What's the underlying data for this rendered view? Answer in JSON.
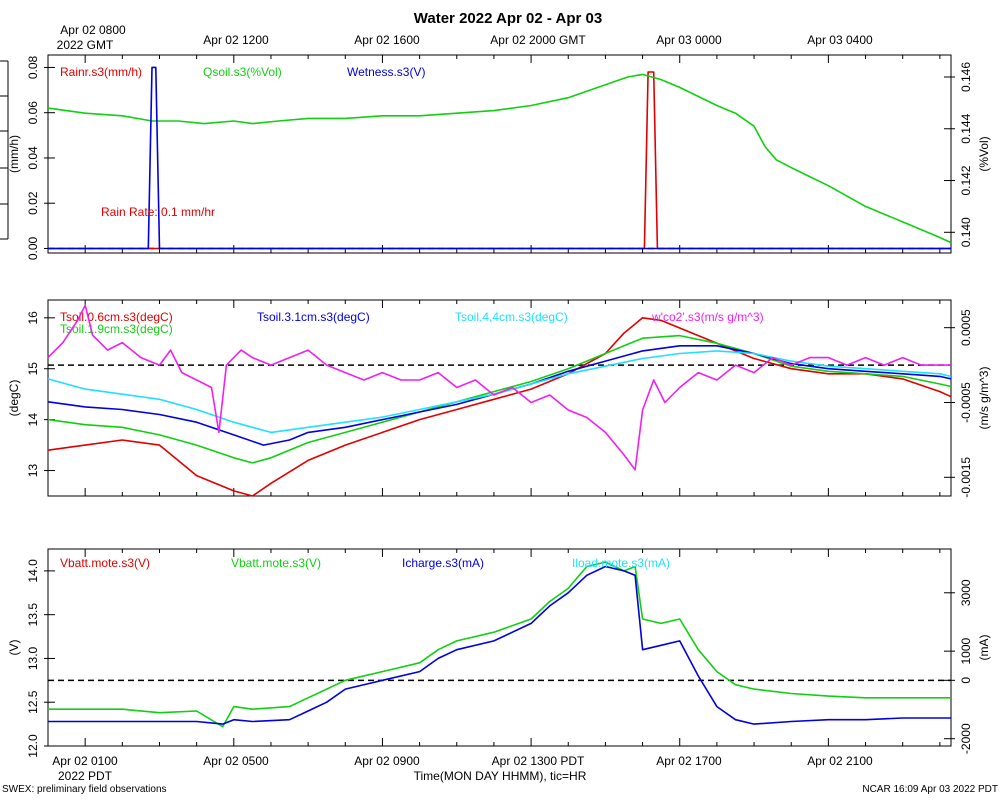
{
  "title": "Water 2022 Apr 02 - Apr 03",
  "top_time_axis": {
    "labels": [
      "Apr 02 0800",
      "Apr 02 1200",
      "Apr 02 1600",
      "Apr 02 2000 GMT",
      "Apr 03 0000",
      "Apr 03 0400"
    ],
    "year_label": "2022 GMT"
  },
  "bottom_time_axis": {
    "labels": [
      "Apr 02 0100",
      "Apr 02 0500",
      "Apr 02 0900",
      "Apr 02 1300 PDT",
      "Apr 02 1700",
      "Apr 02 2100"
    ],
    "year_label": "2022 PDT",
    "xlabel": "Time(MON DAY HHMM), tic=HR"
  },
  "footer": {
    "left": "SWEX: preliminary field observations",
    "right": "NCAR 16:09 Apr 03 2022 PDT"
  },
  "colors": {
    "red": "#e00000",
    "green": "#10d010",
    "blue": "#0000e0",
    "cyan": "#20e0ff",
    "magenta": "#f020f0",
    "black": "#000000"
  },
  "chart_data": [
    {
      "type": "line",
      "panel": "rain-soil",
      "x_unit": "hours since Apr 02 0000 PDT",
      "xlim": [
        0,
        24.3
      ],
      "ylabel_left": "(mm/h)",
      "ylabel_right": "(%Vol)",
      "ylim_left": [
        -0.002,
        0.0855
      ],
      "yticks_left": [
        "0.00",
        "0.02",
        "0.04",
        "0.06",
        "0.08"
      ],
      "ylim_right": [
        0.1392,
        0.14685
      ],
      "yticks_right": [
        "0.140",
        "0.142",
        "0.144",
        "0.146"
      ],
      "annotation": "Rain Rate: 0.1 mm/hr",
      "series": [
        {
          "name": "Rainr.s3(mm/h)",
          "color": "red",
          "axis": "left",
          "x": [
            0,
            16.05,
            16.15,
            16.3,
            16.4,
            24.3
          ],
          "y": [
            0,
            0,
            0.078,
            0.078,
            0,
            0
          ]
        },
        {
          "name": "Qsoil.s3(%Vol)",
          "color": "green",
          "axis": "right",
          "x": [
            0,
            1,
            2,
            2.8,
            3.5,
            4.2,
            5,
            5.5,
            6.2,
            7,
            8,
            9,
            10,
            11,
            12,
            13,
            14,
            15,
            15.6,
            16,
            16.5,
            17,
            18,
            18.5,
            19,
            19.3,
            19.6,
            20,
            21,
            22,
            23,
            24,
            24.3
          ],
          "y": [
            0.1448,
            0.1446,
            0.1445,
            0.1443,
            0.1443,
            0.1442,
            0.1443,
            0.1442,
            0.1443,
            0.1444,
            0.1444,
            0.1445,
            0.1445,
            0.1446,
            0.1447,
            0.1449,
            0.1452,
            0.1457,
            0.146,
            0.1461,
            0.1459,
            0.1456,
            0.1449,
            0.1446,
            0.1441,
            0.1433,
            0.1428,
            0.1425,
            0.1418,
            0.141,
            0.1404,
            0.1398,
            0.1396
          ]
        },
        {
          "name": "Wetness.s3(V)",
          "color": "blue",
          "axis": "left",
          "x": [
            0,
            2.7,
            2.8,
            2.9,
            3.0,
            24.3
          ],
          "y": [
            0,
            0,
            0.08,
            0.08,
            0,
            0
          ]
        }
      ],
      "reference_line": {
        "axis": "left",
        "value": 0
      }
    },
    {
      "type": "line",
      "panel": "soil-temperature",
      "x_unit": "hours since Apr 02 0000 PDT",
      "xlim": [
        0,
        24.3
      ],
      "ylabel_left": "(degC)",
      "ylabel_right": "(m/s g/m^3)",
      "ylim_left": [
        12.5,
        16.35
      ],
      "yticks_left": [
        "13",
        "14",
        "15",
        "16"
      ],
      "ylim_right": [
        -0.00175,
        0.00087
      ],
      "yticks_right": [
        "-0.0015",
        "-0.0005",
        "0.0005"
      ],
      "series": [
        {
          "name": "Tsoil.0.6cm.s3(degC)",
          "color": "red",
          "axis": "left",
          "x": [
            0,
            1,
            2,
            3,
            3.5,
            4,
            4.5,
            5,
            5.5,
            6,
            7,
            8,
            9,
            10,
            11,
            12,
            13,
            14,
            15,
            15.5,
            16,
            16.5,
            17,
            18,
            19,
            20,
            21,
            22,
            23,
            24,
            24.3
          ],
          "y": [
            13.4,
            13.5,
            13.6,
            13.5,
            13.2,
            12.9,
            12.75,
            12.6,
            12.5,
            12.75,
            13.2,
            13.5,
            13.75,
            14.0,
            14.2,
            14.4,
            14.6,
            14.9,
            15.3,
            15.7,
            16.0,
            15.95,
            15.8,
            15.5,
            15.2,
            15.0,
            14.9,
            14.9,
            14.8,
            14.55,
            14.45
          ]
        },
        {
          "name": "Tsoil.1.9cm.s3(degC)",
          "color": "green",
          "axis": "left",
          "x": [
            0,
            1,
            2,
            3,
            4,
            5,
            5.5,
            6,
            7,
            8,
            9,
            10,
            11,
            12,
            13,
            14,
            15,
            15.5,
            16,
            17,
            18,
            19,
            20,
            21,
            22,
            23,
            24,
            24.3
          ],
          "y": [
            14.0,
            13.9,
            13.85,
            13.7,
            13.5,
            13.25,
            13.15,
            13.25,
            13.55,
            13.75,
            13.95,
            14.15,
            14.35,
            14.55,
            14.75,
            15.0,
            15.3,
            15.45,
            15.6,
            15.65,
            15.5,
            15.3,
            15.05,
            14.95,
            14.9,
            14.85,
            14.7,
            14.65
          ]
        },
        {
          "name": "Tsoil.3.1cm.s3(degC)",
          "color": "blue",
          "axis": "left",
          "x": [
            0,
            1,
            2,
            3,
            4,
            5,
            5.8,
            6.5,
            7,
            8,
            9,
            10,
            11,
            12,
            13,
            14,
            15,
            16,
            17,
            18,
            19,
            20,
            21,
            22,
            23,
            24,
            24.3
          ],
          "y": [
            14.35,
            14.25,
            14.2,
            14.1,
            13.95,
            13.7,
            13.5,
            13.6,
            13.75,
            13.85,
            14.0,
            14.15,
            14.3,
            14.5,
            14.7,
            14.95,
            15.15,
            15.35,
            15.45,
            15.45,
            15.3,
            15.1,
            15.0,
            14.95,
            14.9,
            14.85,
            14.8
          ]
        },
        {
          "name": "Tsoil.4.4cm.s3(degC)",
          "color": "cyan",
          "axis": "left",
          "x": [
            0,
            1,
            2,
            3,
            4,
            5,
            6,
            7,
            8,
            9,
            10,
            11,
            12,
            13,
            14,
            15,
            16,
            17,
            18,
            19,
            20,
            21,
            22,
            23,
            24,
            24.3
          ],
          "y": [
            14.8,
            14.6,
            14.5,
            14.4,
            14.2,
            13.95,
            13.75,
            13.85,
            13.95,
            14.05,
            14.2,
            14.35,
            14.5,
            14.7,
            14.9,
            15.05,
            15.2,
            15.3,
            15.35,
            15.3,
            15.15,
            15.05,
            15.0,
            14.95,
            14.9,
            14.85
          ]
        },
        {
          "name": "w'co2'.s3(m/s g/m^3)",
          "color": "magenta",
          "axis": "right",
          "x": [
            0,
            0.4,
            0.8,
            1.0,
            1.2,
            1.6,
            2.0,
            2.5,
            3.0,
            3.3,
            3.6,
            4.0,
            4.4,
            4.6,
            4.8,
            5.2,
            5.5,
            6.0,
            6.5,
            7.0,
            7.5,
            8.0,
            8.5,
            9.0,
            9.5,
            10.0,
            10.5,
            11.0,
            11.5,
            12.0,
            12.5,
            13.0,
            13.5,
            14.0,
            14.5,
            15.0,
            15.5,
            15.8,
            16.0,
            16.3,
            16.6,
            17.0,
            17.5,
            18.0,
            18.5,
            19.0,
            19.5,
            20.0,
            20.5,
            21.0,
            21.5,
            22.0,
            22.5,
            23.0,
            23.5,
            24.0,
            24.3
          ],
          "y": [
            0.0001,
            0.0003,
            0.0006,
            0.0008,
            0.0004,
            0.0002,
            0.0003,
            0.0001,
            0.0,
            0.0002,
            -0.0001,
            -0.0002,
            -0.0003,
            -0.0009,
            0.0,
            0.0002,
            0.0001,
            0.0,
            0.0001,
            0.0002,
            0.0,
            -0.0001,
            -0.0002,
            -0.0001,
            -0.0002,
            -0.0002,
            -0.0001,
            -0.0003,
            -0.0002,
            -0.0004,
            -0.0003,
            -0.0005,
            -0.0004,
            -0.0006,
            -0.0007,
            -0.0009,
            -0.0012,
            -0.0014,
            -0.0006,
            -0.0002,
            -0.0005,
            -0.0003,
            -0.0001,
            -0.0002,
            0.0,
            -0.0001,
            0.0001,
            0.0,
            0.0001,
            0.0001,
            0.0,
            0.0001,
            0.0,
            0.0001,
            0.0,
            0.0,
            0.0
          ]
        }
      ],
      "reference_line": {
        "axis": "right",
        "value": 0
      }
    },
    {
      "type": "line",
      "panel": "battery-charge",
      "x_unit": "hours since Apr 02 0000 PDT",
      "xlim": [
        0,
        24.3
      ],
      "ylabel_left": "(V)",
      "ylabel_right": "(mA)",
      "ylim_left": [
        12.0,
        14.25
      ],
      "yticks_left": [
        "12.0",
        "12.5",
        "13.0",
        "13.5",
        "14.0"
      ],
      "ylim_right": [
        -2250,
        4500
      ],
      "yticks_right": [
        "-2000",
        "0",
        "1000",
        "3000"
      ],
      "series": [
        {
          "name": "Vbatt.mote.s3(V)",
          "color": "red",
          "axis": "left",
          "x": [],
          "y": []
        },
        {
          "name": "Vbatt.mote.s3(V)",
          "color": "green",
          "axis": "left",
          "x": [
            0,
            1,
            2,
            3,
            4,
            4.7,
            5.0,
            5.5,
            6.5,
            7.0,
            7.5,
            8.0,
            9.0,
            10.0,
            10.5,
            11.0,
            12.0,
            13.0,
            13.5,
            14.0,
            14.5,
            15.0,
            15.5,
            15.8,
            16.0,
            16.5,
            17.0,
            17.5,
            18.0,
            18.5,
            19.0,
            20.0,
            21.0,
            22.0,
            23.0,
            24.0,
            24.3
          ],
          "y": [
            12.42,
            12.42,
            12.42,
            12.38,
            12.4,
            12.22,
            12.45,
            12.42,
            12.45,
            12.55,
            12.65,
            12.75,
            12.85,
            12.95,
            13.1,
            13.2,
            13.3,
            13.45,
            13.65,
            13.8,
            14.05,
            14.1,
            14.0,
            14.05,
            13.45,
            13.4,
            13.45,
            13.1,
            12.85,
            12.7,
            12.65,
            12.6,
            12.57,
            12.55,
            12.55,
            12.55,
            12.55
          ]
        },
        {
          "name": "Icharge.s3(mA)",
          "color": "blue",
          "axis": "left",
          "x": [
            0,
            1,
            2,
            3,
            4,
            4.7,
            5.0,
            5.5,
            6.5,
            7.0,
            7.5,
            8.0,
            9.0,
            10.0,
            10.5,
            11.0,
            12.0,
            13.0,
            13.5,
            14.0,
            14.5,
            15.0,
            15.5,
            15.8,
            16.0,
            16.5,
            17.0,
            17.5,
            18.0,
            18.5,
            19.0,
            20.0,
            21.0,
            22.0,
            23.0,
            24.0,
            24.3
          ],
          "y": [
            12.28,
            12.28,
            12.28,
            12.28,
            12.28,
            12.25,
            12.3,
            12.28,
            12.3,
            12.4,
            12.5,
            12.65,
            12.75,
            12.85,
            13.0,
            13.1,
            13.2,
            13.4,
            13.6,
            13.75,
            13.95,
            14.05,
            14.0,
            13.95,
            13.1,
            13.15,
            13.2,
            12.8,
            12.45,
            12.3,
            12.25,
            12.28,
            12.3,
            12.3,
            12.32,
            12.32,
            12.32
          ]
        },
        {
          "name": "Iload.mote.s3(mA)",
          "color": "cyan",
          "axis": "right",
          "x": [],
          "y": []
        }
      ],
      "reference_line": {
        "axis": "right",
        "value": 0
      }
    }
  ]
}
